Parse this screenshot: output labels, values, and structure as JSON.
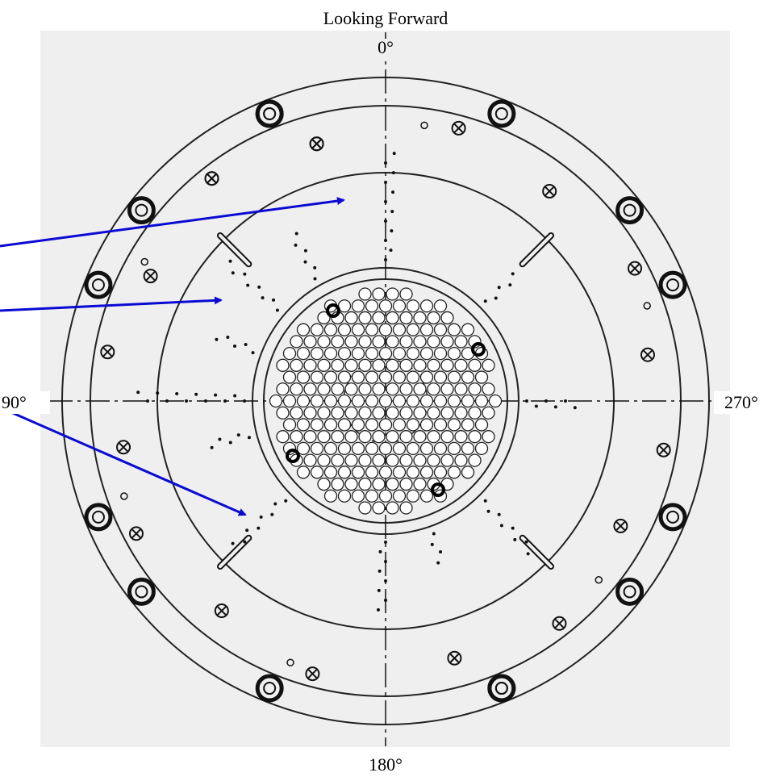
{
  "header": {
    "title": "Looking Forward"
  },
  "labels": {
    "top": "0°",
    "left": "90°",
    "right": "270°",
    "bottom": "180°"
  }
}
